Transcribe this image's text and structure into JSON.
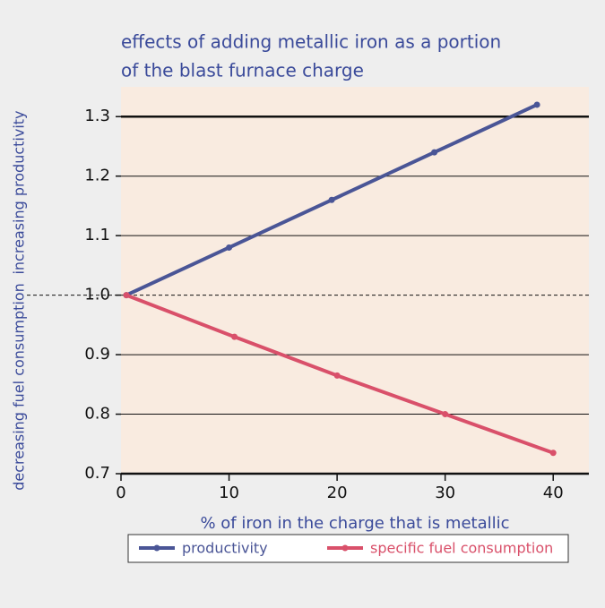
{
  "chart_data": {
    "type": "line",
    "title": [
      "effects of adding metallic iron as a portion",
      "of the blast furnace charge"
    ],
    "ylabel_upper": "increasing productivity",
    "ylabel_lower": "decreasing fuel consumption",
    "xlabel": "% of iron in the charge that is metallic",
    "xlim": [
      0,
      43.3
    ],
    "ylim": [
      0.7,
      1.35
    ],
    "xticks": [
      0,
      10,
      20,
      30,
      40
    ],
    "yticks": [
      0.7,
      0.8,
      0.9,
      {
        "value": 1,
        "label": "1.0"
      },
      1.1,
      1.2,
      1.3
    ],
    "grid": true,
    "reference_line": 1,
    "emphasis_line": 1.3,
    "legend": "bottom",
    "series": [
      {
        "name": "productivity",
        "color": "#4a5596",
        "x": [
          0.5,
          10,
          19.5,
          29,
          38.5
        ],
        "values": [
          1.0,
          1.08,
          1.16,
          1.24,
          1.32
        ]
      },
      {
        "name": "specific fuel consumption",
        "color": "#d9506a",
        "x": [
          0.5,
          10.5,
          20,
          30,
          40
        ],
        "values": [
          1.0,
          0.93,
          0.865,
          0.8,
          0.735
        ]
      }
    ]
  }
}
